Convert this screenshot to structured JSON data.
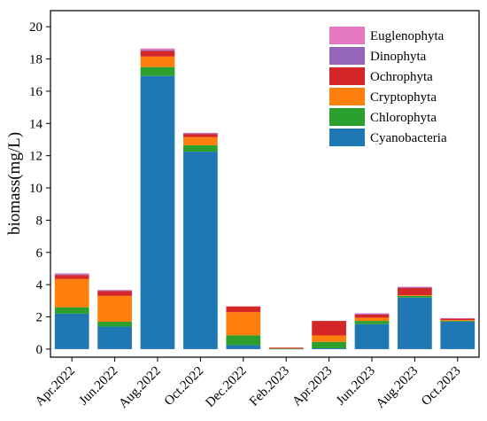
{
  "chart_data": {
    "type": "bar",
    "stacked": true,
    "title": "",
    "xlabel": "",
    "ylabel": "biomass(mg/L)",
    "ylim": [
      -0.5,
      21
    ],
    "yticks": [
      0,
      2,
      4,
      6,
      8,
      10,
      12,
      14,
      16,
      18,
      20
    ],
    "grid": false,
    "legend_position": "top-right",
    "categories": [
      "Apr.2022",
      "Jun.2022",
      "Aug.2022",
      "Oct.2022",
      "Dec.2022",
      "Feb.2023",
      "Apr.2023",
      "Jun.2023",
      "Aug.2023",
      "Oct.2023"
    ],
    "series": [
      {
        "name": "Cyanobacteria",
        "color": "#1f77b4",
        "values": [
          2.2,
          1.4,
          16.95,
          12.25,
          0.25,
          0.02,
          0.05,
          1.55,
          3.2,
          1.7
        ]
      },
      {
        "name": "Chlorophyta",
        "color": "#2ca02c",
        "values": [
          0.4,
          0.3,
          0.55,
          0.4,
          0.6,
          0.02,
          0.4,
          0.2,
          0.1,
          0.05
        ]
      },
      {
        "name": "Cryptophyta",
        "color": "#ff7f0e",
        "values": [
          1.75,
          1.6,
          0.65,
          0.5,
          1.45,
          0.02,
          0.4,
          0.2,
          0.05,
          0.05
        ]
      },
      {
        "name": "Ochrophyta",
        "color": "#d62728",
        "values": [
          0.25,
          0.3,
          0.35,
          0.2,
          0.35,
          0.04,
          0.9,
          0.2,
          0.45,
          0.1
        ]
      },
      {
        "name": "Dinophyta",
        "color": "#9467bd",
        "values": [
          0.05,
          0.05,
          0.05,
          0.05,
          0.0,
          0.0,
          0.0,
          0.05,
          0.05,
          0.0
        ]
      },
      {
        "name": "Euglenophyta",
        "color": "#e377c2",
        "values": [
          0.05,
          0.02,
          0.1,
          0.02,
          0.0,
          0.0,
          0.0,
          0.02,
          0.02,
          0.02
        ]
      }
    ]
  }
}
